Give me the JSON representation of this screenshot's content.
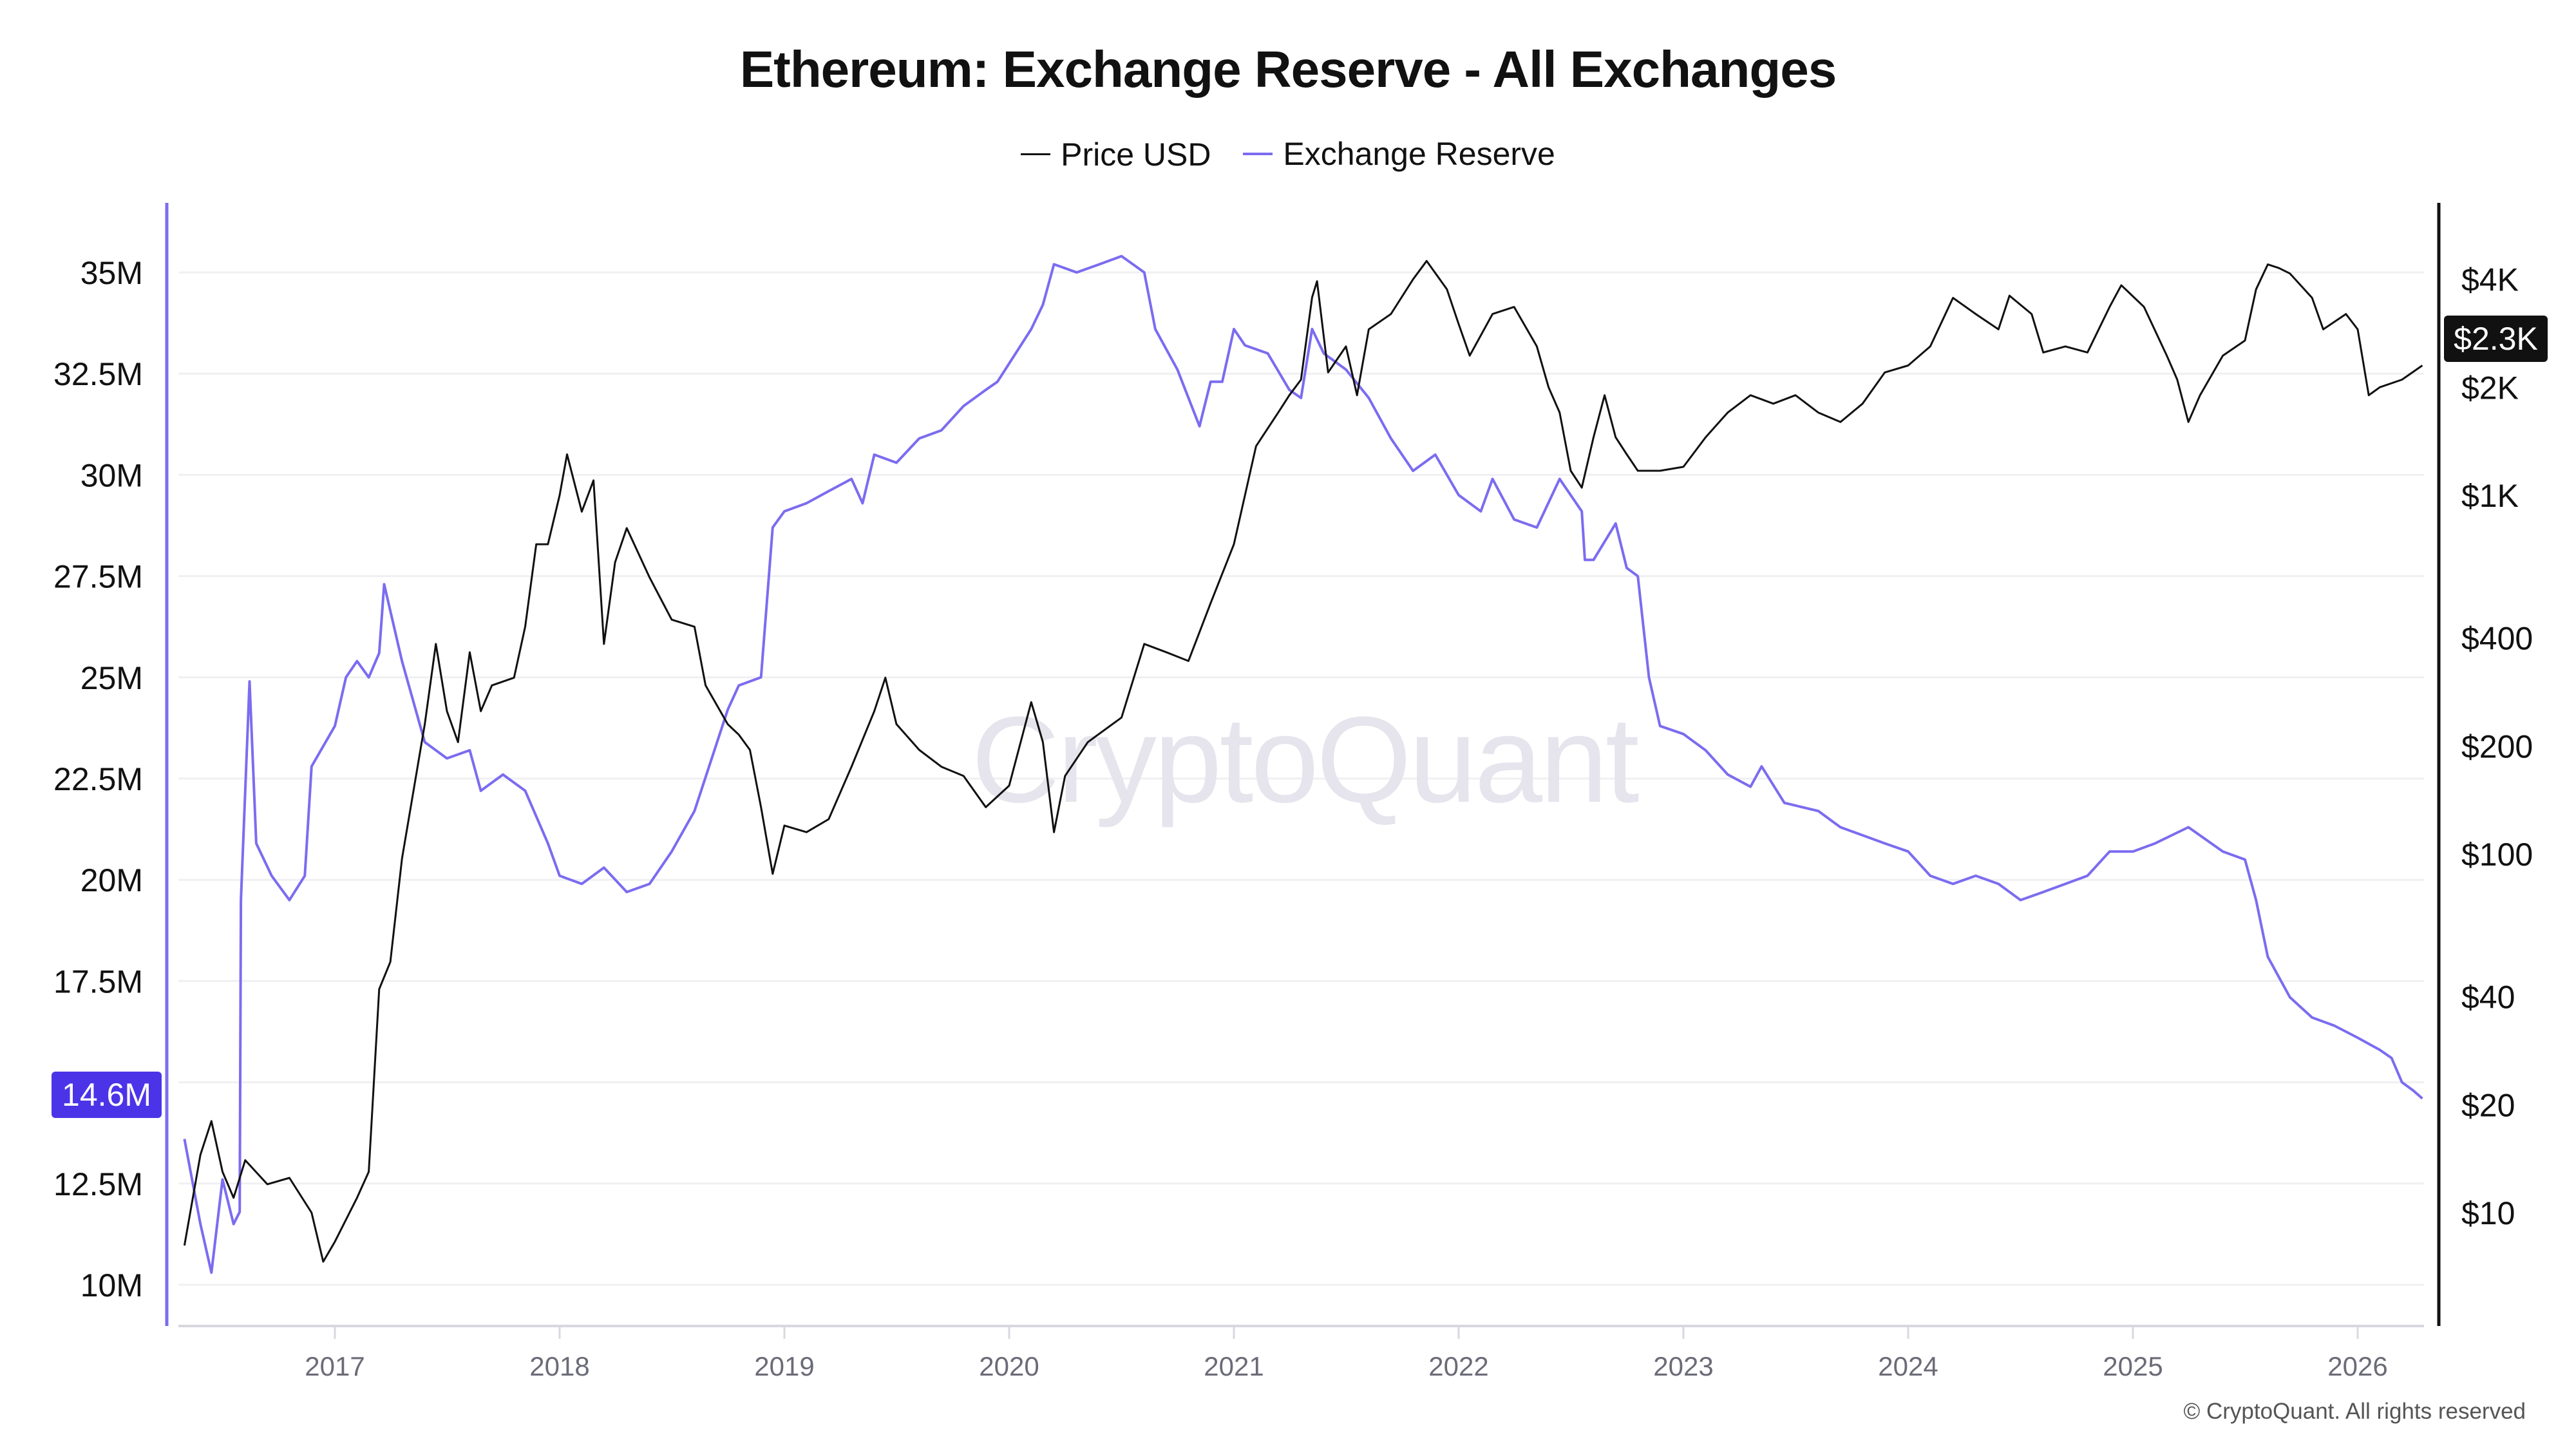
{
  "chart_data": {
    "type": "line",
    "title": "Ethereum: Exchange Reserve - All Exchanges",
    "legend": {
      "placement": "top-center",
      "items": [
        "Price USD",
        "Exchange Reserve"
      ]
    },
    "grid": true,
    "watermark": "CryptoQuant",
    "copyright": "© CryptoQuant. All rights reserved",
    "x_axis": {
      "ticks": [
        "2017",
        "2018",
        "2019",
        "2020",
        "2021",
        "2022",
        "2023",
        "2024",
        "2025",
        "2026"
      ],
      "range": [
        "2016-05-01",
        "2026-04-16"
      ]
    },
    "y_left": {
      "ticks": [
        "10M",
        "12.5M",
        "17.5M",
        "20M",
        "22.5M",
        "25M",
        "27.5M",
        "30M",
        "32.5M",
        "35M"
      ],
      "tick_values": [
        10,
        12.5,
        17.5,
        20,
        22.5,
        25,
        27.5,
        30,
        32.5,
        35
      ],
      "unit": "M",
      "range": [
        9,
        36.5
      ]
    },
    "y_right": {
      "scale": "log",
      "ticks": [
        "$10",
        "$20",
        "$40",
        "$100",
        "$200",
        "$400",
        "$1K",
        "$2K",
        "$4K"
      ],
      "tick_values": [
        10,
        20,
        40,
        100,
        200,
        400,
        1000,
        2000,
        4000
      ]
    },
    "last_values": {
      "reserve": "14.6M",
      "price": "$2.3K"
    },
    "colors": {
      "price": "#111111",
      "reserve": "#7b6cf0",
      "reserve_badge": "#4b34e8",
      "price_badge": "#111111"
    },
    "series": [
      {
        "name": "Price USD",
        "axis": "right",
        "points": [
          [
            "2016-05-01",
            8.1
          ],
          [
            "2016-05-27",
            14.5
          ],
          [
            "2016-06-14",
            18
          ],
          [
            "2016-07-02",
            13
          ],
          [
            "2016-07-20",
            11
          ],
          [
            "2016-08-08",
            14
          ],
          [
            "2016-09-13",
            12
          ],
          [
            "2016-10-19",
            12.5
          ],
          [
            "2016-11-24",
            10
          ],
          [
            "2016-12-13",
            7.3
          ],
          [
            "2017-01-01",
            8.3
          ],
          [
            "2017-02-06",
            11
          ],
          [
            "2017-02-25",
            13
          ],
          [
            "2017-03-14",
            42
          ],
          [
            "2017-04-01",
            50
          ],
          [
            "2017-04-20",
            97
          ],
          [
            "2017-05-27",
            230
          ],
          [
            "2017-06-14",
            385
          ],
          [
            "2017-07-02",
            250
          ],
          [
            "2017-07-20",
            205
          ],
          [
            "2017-08-08",
            365
          ],
          [
            "2017-08-26",
            250
          ],
          [
            "2017-09-13",
            295
          ],
          [
            "2017-10-19",
            310
          ],
          [
            "2017-11-06",
            430
          ],
          [
            "2017-11-24",
            730
          ],
          [
            "2017-12-13",
            730
          ],
          [
            "2018-01-01",
            1000
          ],
          [
            "2018-01-13",
            1300
          ],
          [
            "2018-02-06",
            900
          ],
          [
            "2018-02-25",
            1100
          ],
          [
            "2018-03-14",
            385
          ],
          [
            "2018-04-01",
            650
          ],
          [
            "2018-04-20",
            810
          ],
          [
            "2018-05-27",
            590
          ],
          [
            "2018-07-02",
            450
          ],
          [
            "2018-08-08",
            430
          ],
          [
            "2018-08-26",
            295
          ],
          [
            "2018-10-01",
            230
          ],
          [
            "2018-10-19",
            215
          ],
          [
            "2018-11-06",
            195
          ],
          [
            "2018-11-24",
            135
          ],
          [
            "2018-12-13",
            88
          ],
          [
            "2019-01-01",
            120
          ],
          [
            "2019-02-06",
            115
          ],
          [
            "2019-03-14",
            125
          ],
          [
            "2019-04-20",
            175
          ],
          [
            "2019-05-27",
            250
          ],
          [
            "2019-06-14",
            310
          ],
          [
            "2019-07-02",
            230
          ],
          [
            "2019-08-08",
            195
          ],
          [
            "2019-09-13",
            175
          ],
          [
            "2019-10-19",
            165
          ],
          [
            "2019-11-24",
            135
          ],
          [
            "2020-01-01",
            155
          ],
          [
            "2020-02-06",
            265
          ],
          [
            "2020-02-25",
            205
          ],
          [
            "2020-03-14",
            115
          ],
          [
            "2020-04-01",
            165
          ],
          [
            "2020-05-08",
            205
          ],
          [
            "2020-07-02",
            240
          ],
          [
            "2020-08-08",
            385
          ],
          [
            "2020-09-13",
            365
          ],
          [
            "2020-10-19",
            345
          ],
          [
            "2020-11-24",
            500
          ],
          [
            "2021-01-01",
            730
          ],
          [
            "2021-02-06",
            1370
          ],
          [
            "2021-03-14",
            1700
          ],
          [
            "2021-04-01",
            1900
          ],
          [
            "2021-04-20",
            2100
          ],
          [
            "2021-05-08",
            3560
          ],
          [
            "2021-05-16",
            3950
          ],
          [
            "2021-06-03",
            2200
          ],
          [
            "2021-07-02",
            2600
          ],
          [
            "2021-07-20",
            1900
          ],
          [
            "2021-08-08",
            2900
          ],
          [
            "2021-09-13",
            3200
          ],
          [
            "2021-10-19",
            4000
          ],
          [
            "2021-11-10",
            4500
          ],
          [
            "2021-12-13",
            3750
          ],
          [
            "2022-01-01",
            3000
          ],
          [
            "2022-01-19",
            2450
          ],
          [
            "2022-02-25",
            3200
          ],
          [
            "2022-04-01",
            3350
          ],
          [
            "2022-05-08",
            2600
          ],
          [
            "2022-05-27",
            2000
          ],
          [
            "2022-06-14",
            1700
          ],
          [
            "2022-07-02",
            1170
          ],
          [
            "2022-07-20",
            1050
          ],
          [
            "2022-08-08",
            1450
          ],
          [
            "2022-08-26",
            1900
          ],
          [
            "2022-09-13",
            1450
          ],
          [
            "2022-10-01",
            1300
          ],
          [
            "2022-10-19",
            1170
          ],
          [
            "2022-11-24",
            1170
          ],
          [
            "2023-01-01",
            1200
          ],
          [
            "2023-02-06",
            1450
          ],
          [
            "2023-03-14",
            1700
          ],
          [
            "2023-04-20",
            1900
          ],
          [
            "2023-05-27",
            1800
          ],
          [
            "2023-07-02",
            1900
          ],
          [
            "2023-08-08",
            1700
          ],
          [
            "2023-09-13",
            1600
          ],
          [
            "2023-10-19",
            1800
          ],
          [
            "2023-11-24",
            2200
          ],
          [
            "2024-01-01",
            2300
          ],
          [
            "2024-02-06",
            2600
          ],
          [
            "2024-03-14",
            3550
          ],
          [
            "2024-04-20",
            3200
          ],
          [
            "2024-05-27",
            2900
          ],
          [
            "2024-06-14",
            3600
          ],
          [
            "2024-07-20",
            3200
          ],
          [
            "2024-08-08",
            2500
          ],
          [
            "2024-09-13",
            2600
          ],
          [
            "2024-10-19",
            2500
          ],
          [
            "2024-11-24",
            3350
          ],
          [
            "2024-12-13",
            3850
          ],
          [
            "2025-01-19",
            3350
          ],
          [
            "2025-02-25",
            2450
          ],
          [
            "2025-03-14",
            2100
          ],
          [
            "2025-04-01",
            1600
          ],
          [
            "2025-04-20",
            1900
          ],
          [
            "2025-05-27",
            2450
          ],
          [
            "2025-07-02",
            2700
          ],
          [
            "2025-07-20",
            3750
          ],
          [
            "2025-08-08",
            4400
          ],
          [
            "2025-08-26",
            4300
          ],
          [
            "2025-09-13",
            4150
          ],
          [
            "2025-10-19",
            3550
          ],
          [
            "2025-11-06",
            2900
          ],
          [
            "2025-12-13",
            3200
          ],
          [
            "2026-01-01",
            2900
          ],
          [
            "2026-01-19",
            1900
          ],
          [
            "2026-02-06",
            2000
          ],
          [
            "2026-03-14",
            2100
          ],
          [
            "2026-04-16",
            2300
          ]
        ]
      },
      {
        "name": "Exchange Reserve",
        "axis": "left",
        "unit": "M",
        "points": [
          [
            "2016-05-01",
            13.6
          ],
          [
            "2016-05-27",
            11.5
          ],
          [
            "2016-06-14",
            10.3
          ],
          [
            "2016-07-02",
            12.6
          ],
          [
            "2016-07-20",
            11.5
          ],
          [
            "2016-07-30",
            11.8
          ],
          [
            "2016-08-01",
            19.5
          ],
          [
            "2016-08-15",
            24.9
          ],
          [
            "2016-08-26",
            20.9
          ],
          [
            "2016-09-20",
            20.1
          ],
          [
            "2016-10-19",
            19.5
          ],
          [
            "2016-11-13",
            20.1
          ],
          [
            "2016-11-24",
            22.8
          ],
          [
            "2017-01-01",
            23.8
          ],
          [
            "2017-01-19",
            25.0
          ],
          [
            "2017-02-06",
            25.4
          ],
          [
            "2017-02-25",
            25.0
          ],
          [
            "2017-03-14",
            25.6
          ],
          [
            "2017-03-22",
            27.3
          ],
          [
            "2017-04-20",
            25.4
          ],
          [
            "2017-05-27",
            23.4
          ],
          [
            "2017-07-02",
            23.0
          ],
          [
            "2017-08-08",
            23.2
          ],
          [
            "2017-08-26",
            22.2
          ],
          [
            "2017-10-01",
            22.6
          ],
          [
            "2017-11-06",
            22.2
          ],
          [
            "2017-12-13",
            20.9
          ],
          [
            "2018-01-01",
            20.1
          ],
          [
            "2018-02-06",
            19.9
          ],
          [
            "2018-03-14",
            20.3
          ],
          [
            "2018-04-20",
            19.7
          ],
          [
            "2018-05-27",
            19.9
          ],
          [
            "2018-07-02",
            20.7
          ],
          [
            "2018-08-08",
            21.7
          ],
          [
            "2018-10-01",
            24.2
          ],
          [
            "2018-10-19",
            24.8
          ],
          [
            "2018-11-24",
            25.0
          ],
          [
            "2018-12-13",
            28.7
          ],
          [
            "2019-01-01",
            29.1
          ],
          [
            "2019-02-06",
            29.3
          ],
          [
            "2019-03-14",
            29.6
          ],
          [
            "2019-04-20",
            29.9
          ],
          [
            "2019-05-08",
            29.3
          ],
          [
            "2019-05-27",
            30.5
          ],
          [
            "2019-07-02",
            30.3
          ],
          [
            "2019-08-08",
            30.9
          ],
          [
            "2019-09-13",
            31.1
          ],
          [
            "2019-10-19",
            31.7
          ],
          [
            "2019-11-24",
            32.1
          ],
          [
            "2019-12-13",
            32.3
          ],
          [
            "2020-02-06",
            33.6
          ],
          [
            "2020-02-25",
            34.2
          ],
          [
            "2020-03-14",
            35.2
          ],
          [
            "2020-04-20",
            35.0
          ],
          [
            "2020-05-27",
            35.2
          ],
          [
            "2020-07-02",
            35.4
          ],
          [
            "2020-08-08",
            35.0
          ],
          [
            "2020-08-26",
            33.6
          ],
          [
            "2020-10-01",
            32.6
          ],
          [
            "2020-11-06",
            31.2
          ],
          [
            "2020-11-24",
            32.3
          ],
          [
            "2020-12-13",
            32.3
          ],
          [
            "2021-01-01",
            33.6
          ],
          [
            "2021-01-19",
            33.2
          ],
          [
            "2021-02-25",
            33.0
          ],
          [
            "2021-04-01",
            32.1
          ],
          [
            "2021-04-20",
            31.9
          ],
          [
            "2021-05-08",
            33.6
          ],
          [
            "2021-05-27",
            33.0
          ],
          [
            "2021-07-02",
            32.6
          ],
          [
            "2021-08-08",
            31.9
          ],
          [
            "2021-09-13",
            30.9
          ],
          [
            "2021-10-19",
            30.1
          ],
          [
            "2021-11-24",
            30.5
          ],
          [
            "2022-01-01",
            29.5
          ],
          [
            "2022-02-06",
            29.1
          ],
          [
            "2022-02-25",
            29.9
          ],
          [
            "2022-04-01",
            28.9
          ],
          [
            "2022-05-08",
            28.7
          ],
          [
            "2022-06-14",
            29.9
          ],
          [
            "2022-07-20",
            29.1
          ],
          [
            "2022-07-25",
            27.9
          ],
          [
            "2022-08-08",
            27.9
          ],
          [
            "2022-09-13",
            28.8
          ],
          [
            "2022-10-01",
            27.7
          ],
          [
            "2022-10-19",
            27.5
          ],
          [
            "2022-11-06",
            25.0
          ],
          [
            "2022-11-24",
            23.8
          ],
          [
            "2023-01-01",
            23.6
          ],
          [
            "2023-02-06",
            23.2
          ],
          [
            "2023-03-14",
            22.6
          ],
          [
            "2023-04-20",
            22.3
          ],
          [
            "2023-05-08",
            22.8
          ],
          [
            "2023-06-14",
            21.9
          ],
          [
            "2023-08-08",
            21.7
          ],
          [
            "2023-09-13",
            21.3
          ],
          [
            "2023-10-19",
            21.1
          ],
          [
            "2023-11-24",
            20.9
          ],
          [
            "2024-01-01",
            20.7
          ],
          [
            "2024-02-06",
            20.1
          ],
          [
            "2024-03-14",
            19.9
          ],
          [
            "2024-04-20",
            20.1
          ],
          [
            "2024-05-27",
            19.9
          ],
          [
            "2024-07-02",
            19.5
          ],
          [
            "2024-08-08",
            19.7
          ],
          [
            "2024-09-13",
            19.9
          ],
          [
            "2024-10-19",
            20.1
          ],
          [
            "2024-11-24",
            20.7
          ],
          [
            "2025-01-01",
            20.7
          ],
          [
            "2025-02-06",
            20.9
          ],
          [
            "2025-04-01",
            21.3
          ],
          [
            "2025-05-27",
            20.7
          ],
          [
            "2025-07-02",
            20.5
          ],
          [
            "2025-07-20",
            19.5
          ],
          [
            "2025-08-08",
            18.1
          ],
          [
            "2025-09-13",
            17.1
          ],
          [
            "2025-10-19",
            16.6
          ],
          [
            "2025-11-24",
            16.4
          ],
          [
            "2026-01-01",
            16.1
          ],
          [
            "2026-02-06",
            15.8
          ],
          [
            "2026-02-25",
            15.6
          ],
          [
            "2026-03-14",
            15.0
          ],
          [
            "2026-04-01",
            14.8
          ],
          [
            "2026-04-16",
            14.6
          ]
        ]
      }
    ]
  }
}
